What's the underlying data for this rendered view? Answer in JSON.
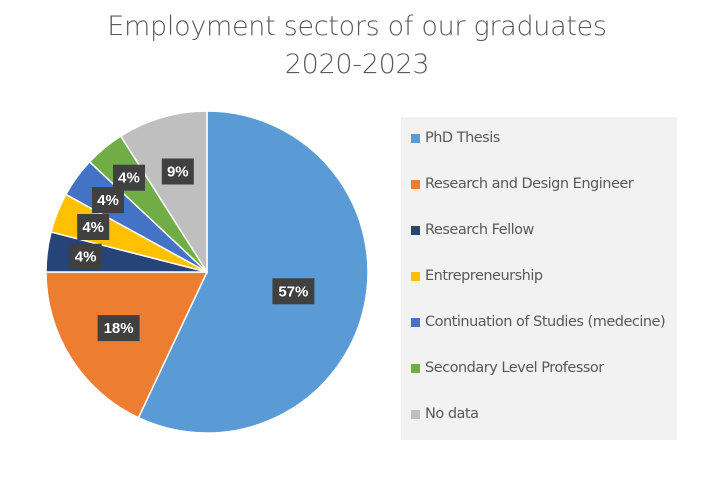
{
  "chart_data": {
    "type": "pie",
    "title": "Employment sectors of our graduates",
    "subtitle": "2020-2023",
    "categories": [
      "PhD Thesis",
      "Research and Design Engineer",
      "Research Fellow",
      "Entrepreneurship",
      "Continuation of Studies (medecine)",
      "Secondary Level Professor",
      "No data"
    ],
    "values": [
      57,
      18,
      4,
      4,
      4,
      4,
      9
    ],
    "value_labels": [
      "57%",
      "18%",
      "4%",
      "4%",
      "4%",
      "4%",
      "9%"
    ],
    "colors": [
      "#5b9bd5",
      "#ed7d31",
      "#264478",
      "#ffc000",
      "#4472c4",
      "#70ad47",
      "#bfbfbf"
    ],
    "legend_position": "right"
  }
}
